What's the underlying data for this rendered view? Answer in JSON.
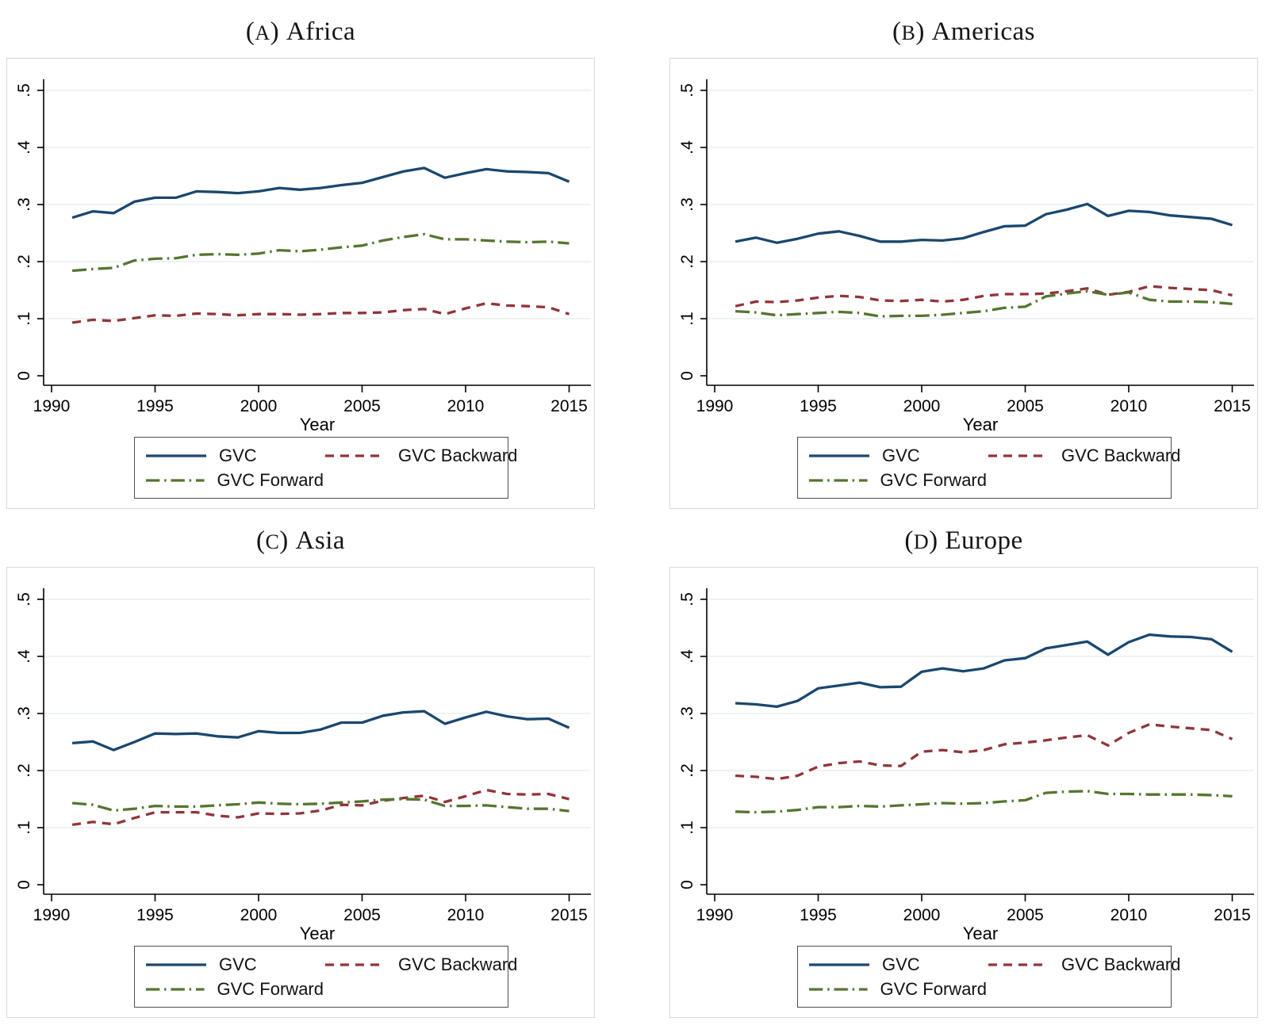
{
  "figure": {
    "description": "Four-panel Stata-style line chart of GVC participation by region, 1991-2015"
  },
  "colors": {
    "gvc": "#1a476f",
    "backward": "#90353b",
    "forward": "#55752f",
    "grid": "#e8edee",
    "region_border": "#d9d9d9",
    "axis": "#000000",
    "legend_border": "#4d4d4d"
  },
  "axis": {
    "x_label": "Year",
    "x_ticks": [
      1990,
      1995,
      2000,
      2005,
      2010,
      2015
    ],
    "y_tick_labels": [
      "0",
      ".1",
      ".2",
      ".3",
      ".4",
      ".5"
    ],
    "y_tick_values": [
      0,
      0.1,
      0.2,
      0.3,
      0.4,
      0.5
    ],
    "xlim": [
      1990,
      2015
    ],
    "ylim": [
      0,
      0.5
    ],
    "grid": "horizontal"
  },
  "legend": {
    "position": "below-plot-boxed",
    "items": [
      {
        "key": "gvc",
        "label": "GVC"
      },
      {
        "key": "backward",
        "label": "GVC Backward"
      },
      {
        "key": "forward",
        "label": "GVC Forward"
      }
    ]
  },
  "chart_data": [
    {
      "type": "line",
      "panel_letter": "A",
      "title": "Africa",
      "xlabel": "Year",
      "ylim": [
        0,
        0.5
      ],
      "x": [
        1991,
        1992,
        1993,
        1994,
        1995,
        1996,
        1997,
        1998,
        1999,
        2000,
        2001,
        2002,
        2003,
        2004,
        2005,
        2006,
        2007,
        2008,
        2009,
        2010,
        2011,
        2012,
        2013,
        2014,
        2015
      ],
      "series": [
        {
          "key": "gvc",
          "name": "GVC",
          "style": "solid",
          "values": [
            0.277,
            0.288,
            0.285,
            0.305,
            0.312,
            0.312,
            0.323,
            0.322,
            0.32,
            0.323,
            0.329,
            0.326,
            0.329,
            0.334,
            0.338,
            0.348,
            0.358,
            0.364,
            0.347,
            0.355,
            0.362,
            0.358,
            0.357,
            0.355,
            0.34
          ]
        },
        {
          "key": "backward",
          "name": "GVC Backward",
          "style": "dashed",
          "values": [
            0.093,
            0.098,
            0.096,
            0.101,
            0.106,
            0.105,
            0.109,
            0.108,
            0.106,
            0.108,
            0.108,
            0.107,
            0.108,
            0.11,
            0.11,
            0.111,
            0.115,
            0.117,
            0.108,
            0.118,
            0.127,
            0.123,
            0.122,
            0.12,
            0.108
          ]
        },
        {
          "key": "forward",
          "name": "GVC Forward",
          "style": "dashdot",
          "values": [
            0.184,
            0.187,
            0.189,
            0.202,
            0.205,
            0.206,
            0.212,
            0.213,
            0.212,
            0.214,
            0.22,
            0.218,
            0.221,
            0.225,
            0.228,
            0.237,
            0.243,
            0.248,
            0.239,
            0.239,
            0.237,
            0.235,
            0.234,
            0.235,
            0.232
          ]
        }
      ]
    },
    {
      "type": "line",
      "panel_letter": "B",
      "title": "Americas",
      "xlabel": "Year",
      "ylim": [
        0,
        0.5
      ],
      "x": [
        1991,
        1992,
        1993,
        1994,
        1995,
        1996,
        1997,
        1998,
        1999,
        2000,
        2001,
        2002,
        2003,
        2004,
        2005,
        2006,
        2007,
        2008,
        2009,
        2010,
        2011,
        2012,
        2013,
        2014,
        2015
      ],
      "series": [
        {
          "key": "gvc",
          "name": "GVC",
          "style": "solid",
          "values": [
            0.235,
            0.242,
            0.233,
            0.24,
            0.249,
            0.253,
            0.245,
            0.235,
            0.235,
            0.238,
            0.237,
            0.241,
            0.252,
            0.262,
            0.263,
            0.283,
            0.291,
            0.301,
            0.28,
            0.289,
            0.287,
            0.281,
            0.278,
            0.275,
            0.264
          ]
        },
        {
          "key": "backward",
          "name": "GVC Backward",
          "style": "dashed",
          "values": [
            0.122,
            0.13,
            0.129,
            0.132,
            0.137,
            0.14,
            0.138,
            0.132,
            0.131,
            0.133,
            0.13,
            0.133,
            0.14,
            0.143,
            0.143,
            0.144,
            0.148,
            0.153,
            0.142,
            0.147,
            0.157,
            0.154,
            0.152,
            0.15,
            0.141
          ]
        },
        {
          "key": "forward",
          "name": "GVC Forward",
          "style": "dashdot",
          "values": [
            0.113,
            0.111,
            0.106,
            0.108,
            0.11,
            0.112,
            0.11,
            0.104,
            0.105,
            0.105,
            0.107,
            0.11,
            0.113,
            0.119,
            0.121,
            0.139,
            0.144,
            0.148,
            0.142,
            0.146,
            0.133,
            0.13,
            0.13,
            0.129,
            0.126
          ]
        }
      ]
    },
    {
      "type": "line",
      "panel_letter": "C",
      "title": "Asia",
      "xlabel": "Year",
      "ylim": [
        0,
        0.5
      ],
      "x": [
        1991,
        1992,
        1993,
        1994,
        1995,
        1996,
        1997,
        1998,
        1999,
        2000,
        2001,
        2002,
        2003,
        2004,
        2005,
        2006,
        2007,
        2008,
        2009,
        2010,
        2011,
        2012,
        2013,
        2014,
        2015
      ],
      "series": [
        {
          "key": "gvc",
          "name": "GVC",
          "style": "solid",
          "values": [
            0.248,
            0.251,
            0.236,
            0.25,
            0.265,
            0.264,
            0.265,
            0.26,
            0.258,
            0.269,
            0.266,
            0.266,
            0.272,
            0.284,
            0.284,
            0.296,
            0.302,
            0.304,
            0.282,
            0.293,
            0.303,
            0.295,
            0.29,
            0.291,
            0.275
          ]
        },
        {
          "key": "backward",
          "name": "GVC Backward",
          "style": "dashed",
          "values": [
            0.105,
            0.11,
            0.106,
            0.117,
            0.127,
            0.127,
            0.127,
            0.121,
            0.118,
            0.125,
            0.124,
            0.125,
            0.13,
            0.14,
            0.139,
            0.147,
            0.152,
            0.156,
            0.145,
            0.155,
            0.166,
            0.159,
            0.158,
            0.159,
            0.15
          ]
        },
        {
          "key": "forward",
          "name": "GVC Forward",
          "style": "dashdot",
          "values": [
            0.143,
            0.14,
            0.13,
            0.133,
            0.138,
            0.137,
            0.137,
            0.139,
            0.141,
            0.144,
            0.142,
            0.141,
            0.142,
            0.144,
            0.146,
            0.149,
            0.15,
            0.149,
            0.138,
            0.138,
            0.139,
            0.136,
            0.133,
            0.133,
            0.129
          ]
        }
      ]
    },
    {
      "type": "line",
      "panel_letter": "D",
      "title": "Europe",
      "xlabel": "Year",
      "ylim": [
        0,
        0.5
      ],
      "x": [
        1991,
        1992,
        1993,
        1994,
        1995,
        1996,
        1997,
        1998,
        1999,
        2000,
        2001,
        2002,
        2003,
        2004,
        2005,
        2006,
        2007,
        2008,
        2009,
        2010,
        2011,
        2012,
        2013,
        2014,
        2015
      ],
      "series": [
        {
          "key": "gvc",
          "name": "GVC",
          "style": "solid",
          "values": [
            0.318,
            0.316,
            0.312,
            0.322,
            0.344,
            0.349,
            0.354,
            0.346,
            0.347,
            0.373,
            0.379,
            0.374,
            0.379,
            0.393,
            0.397,
            0.414,
            0.42,
            0.426,
            0.403,
            0.425,
            0.438,
            0.435,
            0.434,
            0.43,
            0.408
          ]
        },
        {
          "key": "backward",
          "name": "GVC Backward",
          "style": "dashed",
          "values": [
            0.191,
            0.189,
            0.185,
            0.191,
            0.207,
            0.213,
            0.216,
            0.209,
            0.208,
            0.233,
            0.236,
            0.232,
            0.236,
            0.246,
            0.249,
            0.253,
            0.258,
            0.262,
            0.244,
            0.266,
            0.281,
            0.277,
            0.274,
            0.271,
            0.255
          ]
        },
        {
          "key": "forward",
          "name": "GVC Forward",
          "style": "dashdot",
          "values": [
            0.128,
            0.127,
            0.128,
            0.131,
            0.136,
            0.136,
            0.138,
            0.137,
            0.139,
            0.141,
            0.143,
            0.142,
            0.143,
            0.146,
            0.148,
            0.161,
            0.163,
            0.164,
            0.159,
            0.159,
            0.158,
            0.158,
            0.158,
            0.157,
            0.155
          ]
        }
      ]
    }
  ]
}
